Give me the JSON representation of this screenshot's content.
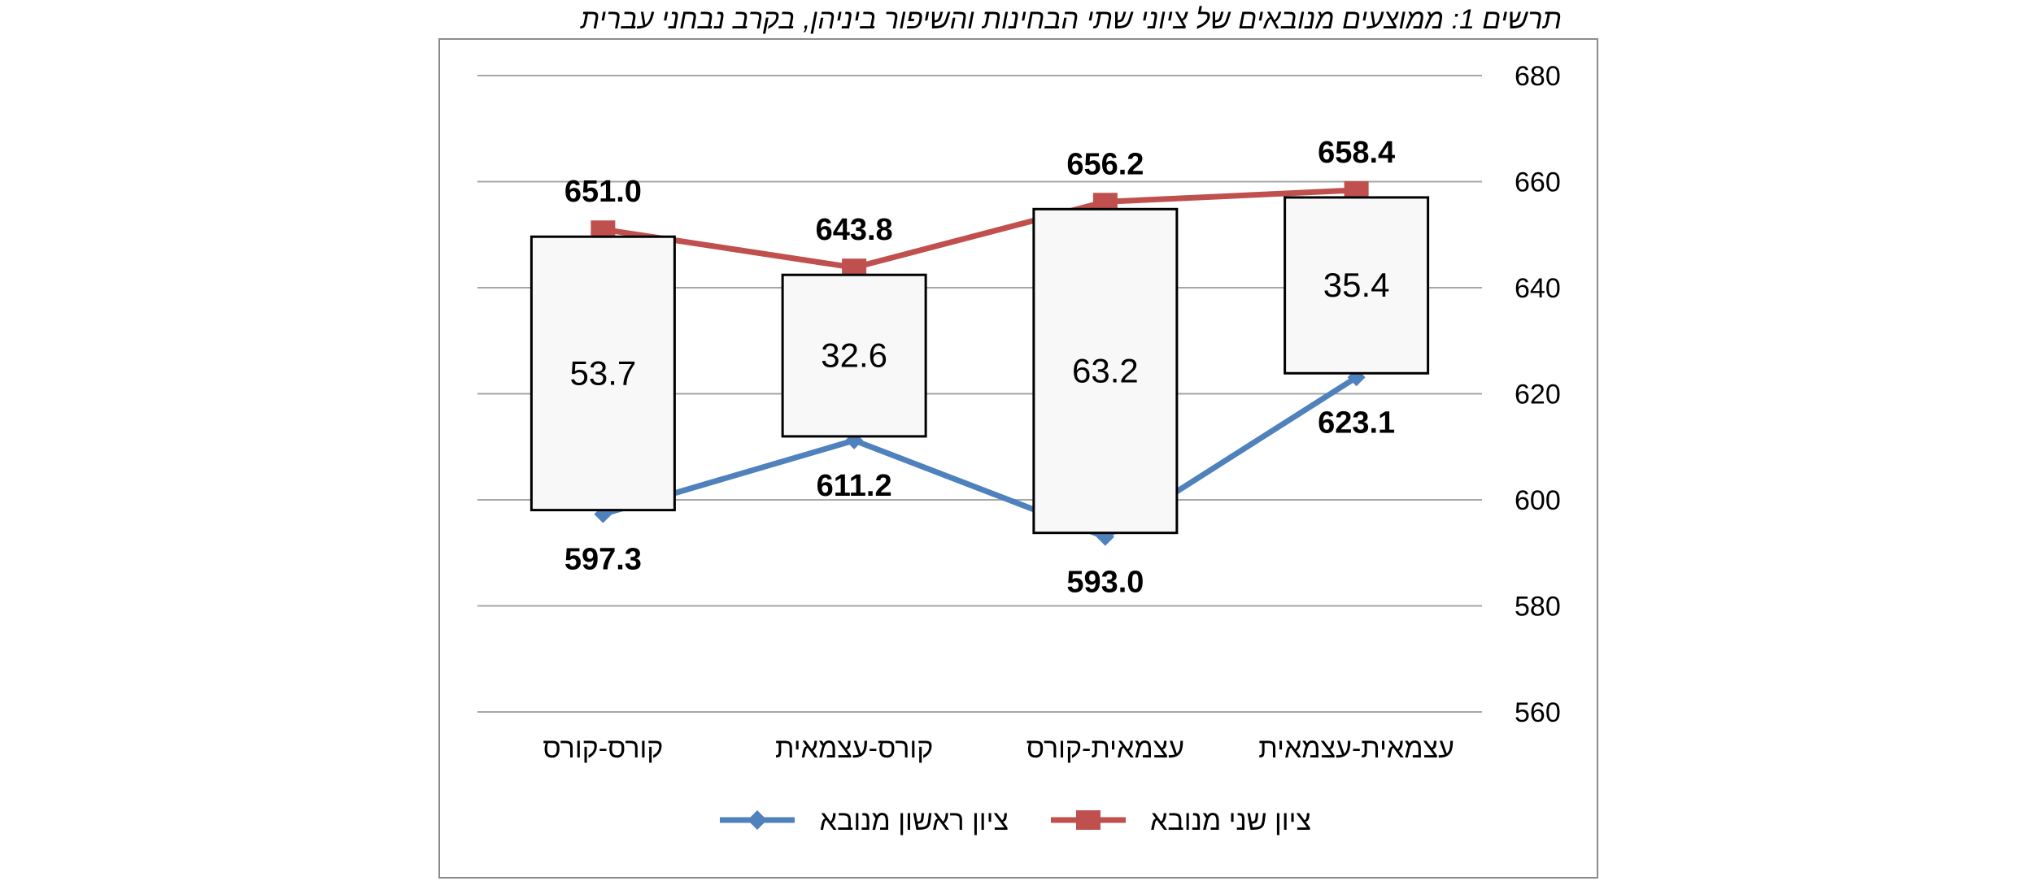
{
  "title": "תרשים 1: ממוצעים מנובאים של ציוני שתי הבחינות והשיפור ביניהן, בקרב נבחני עברית",
  "colors": {
    "series1": "#4f81bd",
    "series2": "#c0504d",
    "grid": "#a6a6a6",
    "box_fill": "#f8f8f8"
  },
  "chart_data": {
    "type": "line",
    "categories": [
      "עצמאית-עצמאית",
      "עצמאית-קורס",
      "קורס-עצמאית",
      "קורס-קורס"
    ],
    "series": [
      {
        "name": "ציון ראשון מנובא",
        "values": [
          623.1,
          593.0,
          611.2,
          597.3
        ],
        "labels": [
          "623.1",
          "593.0",
          "611.2",
          "597.3"
        ],
        "color": "#4f81bd",
        "marker": "diamond"
      },
      {
        "name": "ציון שני מנובא",
        "values": [
          658.4,
          656.2,
          643.8,
          651.0
        ],
        "labels": [
          "658.4",
          "656.2",
          "643.8",
          "651.0"
        ],
        "color": "#c0504d",
        "marker": "square"
      }
    ],
    "improvement": {
      "values": [
        35.4,
        63.2,
        32.6,
        53.7
      ],
      "labels": [
        "35.4",
        "63.2",
        "32.6",
        "53.7"
      ]
    },
    "ylim": [
      560,
      680
    ],
    "yticks": [
      "560",
      "580",
      "600",
      "620",
      "640",
      "660",
      "680"
    ],
    "y_axis_side": "right",
    "grid": true,
    "legend_position": "bottom"
  }
}
